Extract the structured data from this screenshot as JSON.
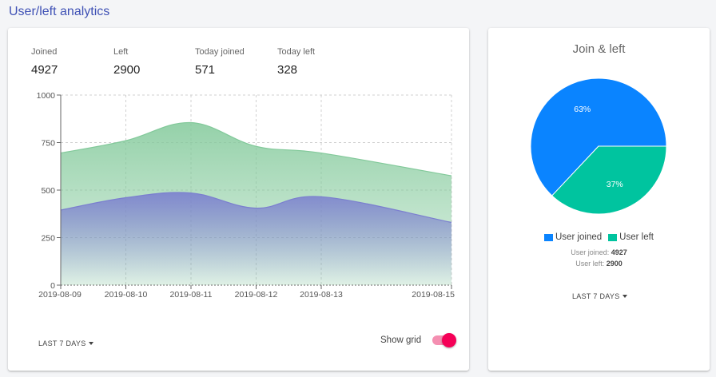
{
  "page": {
    "title": "User/left analytics"
  },
  "stats": [
    {
      "label": "Joined",
      "value": "4927"
    },
    {
      "label": "Left",
      "value": "2900"
    },
    {
      "label": "Today joined",
      "value": "571"
    },
    {
      "label": "Today left",
      "value": "328"
    }
  ],
  "area_chart": {
    "range_label": "LAST 7 DAYS",
    "show_grid_label": "Show grid",
    "show_grid": true
  },
  "pie": {
    "title": "Join & left",
    "joined_label": "User joined",
    "left_label": "User left",
    "joined_summary_label": "User joined:",
    "joined_summary_value": "4927",
    "left_summary_label": "User left:",
    "left_summary_value": "2900",
    "range_label": "LAST 7 DAYS",
    "joined_color": "#0a84ff",
    "left_color": "#00c49f"
  },
  "chart_data": [
    {
      "type": "area",
      "x": [
        "2019-08-09",
        "2019-08-10",
        "2019-08-11",
        "2019-08-12",
        "2019-08-13",
        "2019-08-15"
      ],
      "x_days": [
        0,
        1,
        2,
        3,
        4,
        6
      ],
      "series": [
        {
          "values": [
            695,
            760,
            855,
            730,
            695,
            575
          ],
          "color": "#82c99a"
        },
        {
          "values": [
            395,
            460,
            485,
            405,
            465,
            330
          ],
          "color": "#7b7fcf"
        }
      ],
      "yticks": [
        0,
        250,
        500,
        750,
        1000
      ],
      "ylim": [
        0,
        1000
      ],
      "grid": true
    },
    {
      "type": "pie",
      "labels": [
        "User joined",
        "User left"
      ],
      "values": [
        63,
        37
      ],
      "slice_labels": [
        "63%",
        "37%"
      ],
      "legend": "bottom"
    }
  ]
}
